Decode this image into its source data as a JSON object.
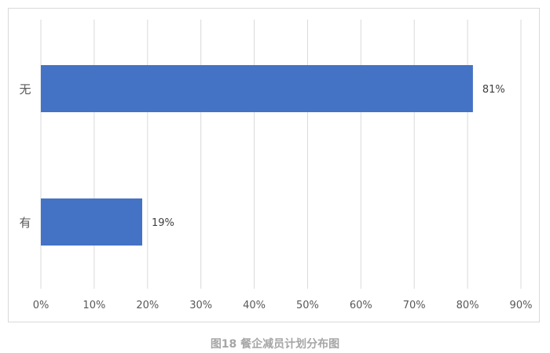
{
  "chart_data": {
    "type": "bar",
    "orientation": "horizontal",
    "categories": [
      "无",
      "有"
    ],
    "values": [
      81,
      19
    ],
    "data_labels": [
      "81%",
      "19%"
    ],
    "xlim": [
      0,
      90
    ],
    "xticks": [
      "0%",
      "10%",
      "20%",
      "30%",
      "40%",
      "50%",
      "60%",
      "70%",
      "80%",
      "90%"
    ],
    "grid": "vertical",
    "bar_color": "#4472c4",
    "caption": "图18 餐企减员计划分布图"
  }
}
